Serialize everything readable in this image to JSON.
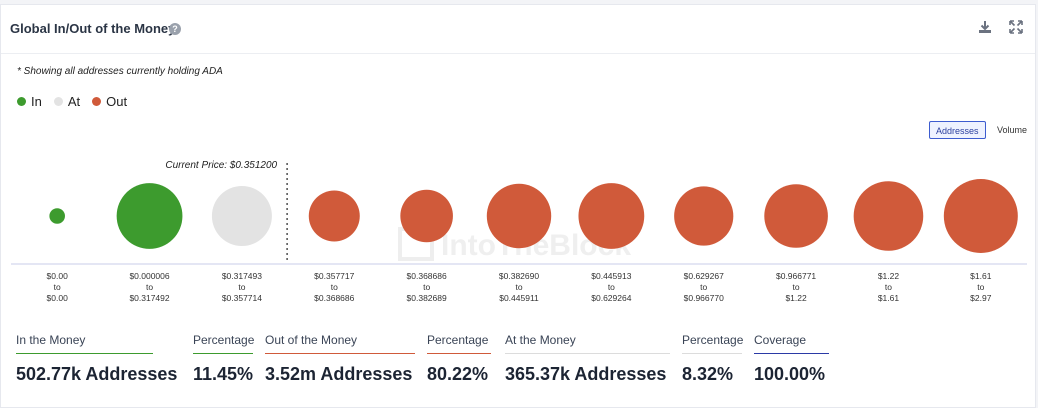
{
  "header": {
    "title": "Global In/Out of the Money",
    "help_glyph": "?"
  },
  "note": "* Showing all addresses currently holding ADA",
  "legend": [
    {
      "label": "In",
      "color": "#3d9b2e"
    },
    {
      "label": "At",
      "color": "#e3e3e3"
    },
    {
      "label": "Out",
      "color": "#d05a3a"
    }
  ],
  "toggles": {
    "addresses": "Addresses",
    "volume": "Volume"
  },
  "watermark": "IntoTheBlock",
  "chart_data": {
    "type": "bubble",
    "title": "Global In/Out of the Money",
    "current_price_label": "Current Price: $0.351200",
    "current_price": 0.3512,
    "size_metric": "addresses (relative)",
    "clusters": [
      {
        "range_low": "$0.00",
        "range_high": "$0.00",
        "status": "in",
        "relative_size": 0.21
      },
      {
        "range_low": "$0.000006",
        "range_high": "$0.317492",
        "status": "in",
        "relative_size": 0.89
      },
      {
        "range_low": "$0.317493",
        "range_high": "$0.357714",
        "status": "at",
        "relative_size": 0.81
      },
      {
        "range_low": "$0.357717",
        "range_high": "$0.368686",
        "status": "out",
        "relative_size": 0.69
      },
      {
        "range_low": "$0.368686",
        "range_high": "$0.382689",
        "status": "out",
        "relative_size": 0.71
      },
      {
        "range_low": "$0.382690",
        "range_high": "$0.445911",
        "status": "out",
        "relative_size": 0.87
      },
      {
        "range_low": "$0.445913",
        "range_high": "$0.629264",
        "status": "out",
        "relative_size": 0.89
      },
      {
        "range_low": "$0.629267",
        "range_high": "$0.966770",
        "status": "out",
        "relative_size": 0.8
      },
      {
        "range_low": "$0.966771",
        "range_high": "$1.22",
        "status": "out",
        "relative_size": 0.86
      },
      {
        "range_low": "$1.22",
        "range_high": "$1.61",
        "status": "out",
        "relative_size": 0.94
      },
      {
        "range_low": "$1.61",
        "range_high": "$2.97",
        "status": "out",
        "relative_size": 1.0
      }
    ],
    "colors": {
      "in": "#3d9b2e",
      "at": "#e3e3e3",
      "out": "#d05a3a"
    },
    "range_separator": "to"
  },
  "stats": [
    {
      "label": "In the Money",
      "value": "502.77k Addresses",
      "color": "#3d9b2e"
    },
    {
      "label": "Percentage",
      "value": "11.45%",
      "color": "#3d9b2e"
    },
    {
      "label": "Out of the Money",
      "value": "3.52m Addresses",
      "color": "#d05a3a"
    },
    {
      "label": "Percentage",
      "value": "80.22%",
      "color": "#d05a3a"
    },
    {
      "label": "At the Money",
      "value": "365.37k Addresses",
      "color": "#dcdcdc"
    },
    {
      "label": "Percentage",
      "value": "8.32%",
      "color": "#dcdcdc"
    },
    {
      "label": "Coverage",
      "value": "100.00%",
      "color": "#2b3aa6"
    }
  ]
}
